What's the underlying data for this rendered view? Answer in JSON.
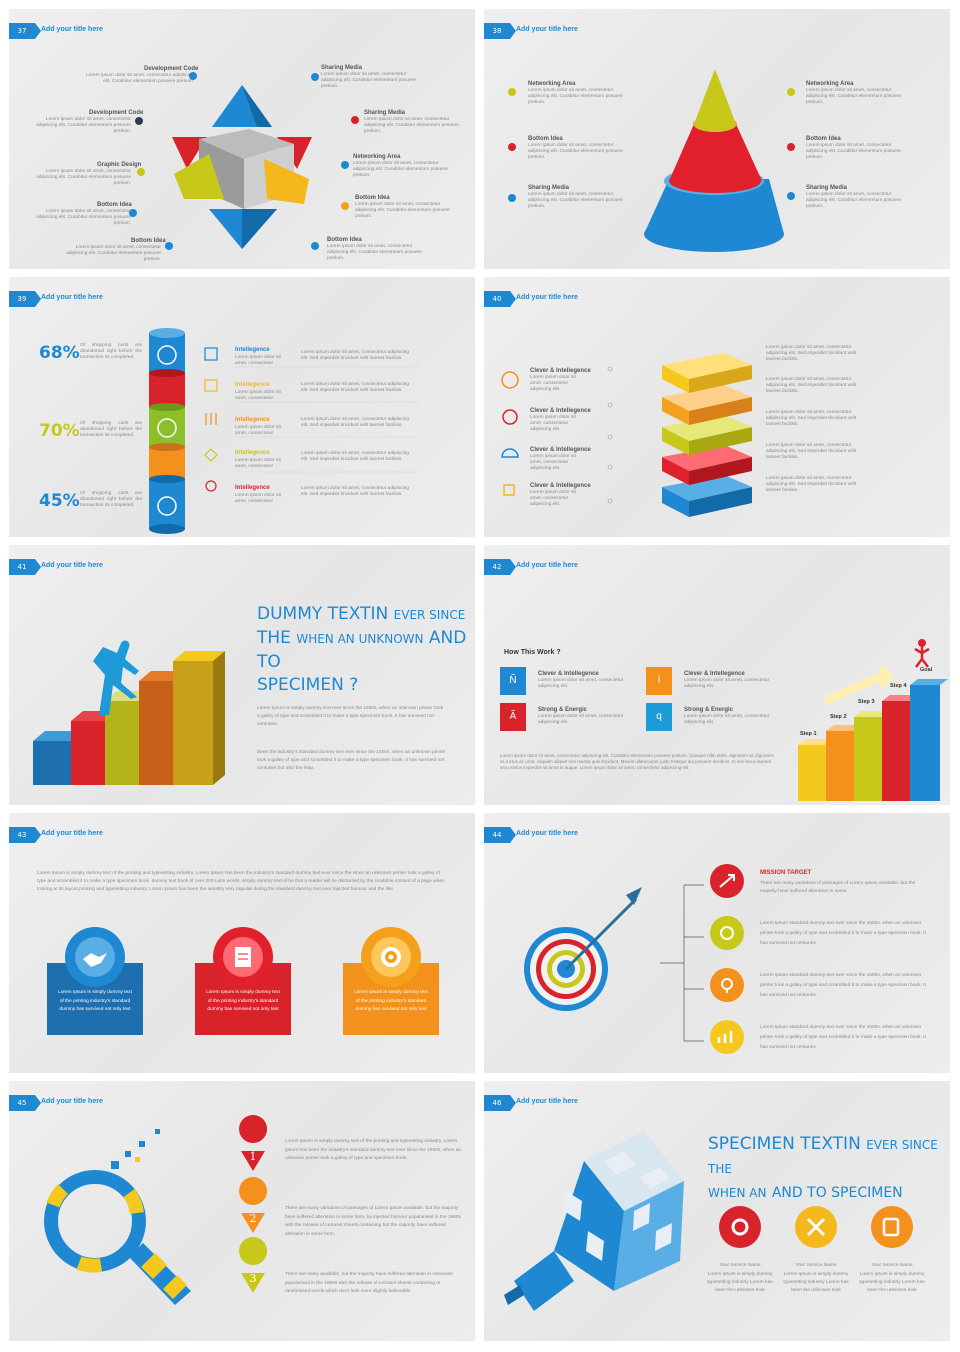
{
  "common": {
    "slide_title": "Add your title here"
  },
  "s37": {
    "num": "37",
    "left": [
      {
        "label": "Development Code",
        "text": "Lorem ipsum dolor sit amet, consectetur adipiscing elit. Curabitur elementum posuere pretium."
      },
      {
        "label": "Development Code",
        "text": "Lorem ipsum dolor sit amet, consectetur adipiscing elit. Curabitur elementum posuere pretium."
      },
      {
        "label": "Graphic Design",
        "text": "Lorem ipsum dolor sit amet, consectetur adipiscing elit. Curabitur elementum posuere pretium."
      },
      {
        "label": "Bottom Idea",
        "text": "Lorem ipsum dolor sit amet, consectetur adipiscing elit. Curabitur elementum posuere pretium."
      },
      {
        "label": "Bottom Idea",
        "text": "Lorem ipsum dolor sit amet, consectetur adipiscing elit. Curabitur elementum posuere pretium."
      }
    ],
    "right": [
      {
        "label": "Sharing Media",
        "text": "Lorem ipsum dolor sit amet, consectetur adipiscing elit. Curabitur elementum posuere pretium."
      },
      {
        "label": "Sharing Media",
        "text": "Lorem ipsum dolor sit amet, consectetur adipiscing elit. Curabitur elementum posuere pretium."
      },
      {
        "label": "Networking Area",
        "text": "Lorem ipsum dolor sit amet, consectetur adipiscing elit. Curabitur elementum posuere pretium."
      },
      {
        "label": "Bottom Idea",
        "text": "Lorem ipsum dolor sit amet, consectetur adipiscing elit. Curabitur elementum posuere pretium."
      },
      {
        "label": "Bottom Idea",
        "text": "Lorem ipsum dolor sit amet, consectetur adipiscing elit. Curabitur elementum posuere pretium."
      }
    ]
  },
  "s38": {
    "num": "38",
    "left": [
      {
        "label": "Networking Area",
        "text": "Lorem ipsum dolor sit amet, consectetur adipiscing elit. Curabitur elementum posuere pretium."
      },
      {
        "label": "Bottom Idea",
        "text": "Lorem ipsum dolor sit amet, consectetur adipiscing elit. Curabitur elementum posuere pretium."
      },
      {
        "label": "Sharing Media",
        "text": "Lorem ipsum dolor sit amet, consectetur adipiscing elit. Curabitur elementum posuere pretium."
      }
    ],
    "right": [
      {
        "label": "Networking Area",
        "text": "Lorem ipsum dolor sit amet, consectetur adipiscing elit. Curabitur elementum posuere pretium."
      },
      {
        "label": "Bottom Idea",
        "text": "Lorem ipsum dolor sit amet, consectetur adipiscing elit. Curabitur elementum posuere pretium."
      },
      {
        "label": "Sharing Media",
        "text": "Lorem ipsum dolor sit amet, consectetur adipiscing elit. Curabitur elementum posuere pretium."
      }
    ]
  },
  "s39": {
    "num": "39",
    "stats": [
      {
        "pct": "68%",
        "text": "Of shopping carts are abandoned right before the transaction its completed."
      },
      {
        "pct": "70%",
        "text": "Of shopping carts are abandoned right before the transaction its completed."
      },
      {
        "pct": "45%",
        "text": "Of shopping carts are abandoned right before the transaction its completed."
      }
    ],
    "items": [
      {
        "label": "Intellegence",
        "sub": "Lorem ipsum dolor sit amet, consectetur",
        "text": "Lorem ipsum dolor sit amet, consectetur adipiscing elit. Sed imperdiet tincidunt velit laoreet facilisis."
      },
      {
        "label": "Intellegence",
        "sub": "Lorem ipsum dolor sit amet, consectetur",
        "text": "Lorem ipsum dolor sit amet, consectetur adipiscing elit. Sed imperdiet tincidunt velit laoreet facilisis."
      },
      {
        "label": "Intellegence",
        "sub": "Lorem ipsum dolor sit amet, consectetur",
        "text": "Lorem ipsum dolor sit amet, consectetur adipiscing elit. Sed imperdiet tincidunt velit laoreet facilisis."
      },
      {
        "label": "Intellegence",
        "sub": "Lorem ipsum dolor sit amet, consectetur",
        "text": "Lorem ipsum dolor sit amet, consectetur adipiscing elit. Sed imperdiet tincidunt velit laoreet facilisis."
      },
      {
        "label": "Intellegence",
        "sub": "Lorem ipsum dolor sit amet, consectetur",
        "text": "Lorem ipsum dolor sit amet, consectetur adipiscing elit. Sed imperdiet tincidunt velit laoreet facilisis."
      }
    ]
  },
  "s40": {
    "num": "40",
    "left": [
      {
        "label": "Clever & Intellegence",
        "text": "Lorem ipsum dolor sit amet, consectetur adipiscing elit."
      },
      {
        "label": "Clever & Intellegence",
        "text": "Lorem ipsum dolor sit amet, consectetur adipiscing elit."
      },
      {
        "label": "Clever & Intellegence",
        "text": "Lorem ipsum dolor sit amet, consectetur adipiscing elit."
      },
      {
        "label": "Clever & Intellegence",
        "text": "Lorem ipsum dolor sit amet, consectetur adipiscing elit."
      }
    ],
    "right": [
      "Lorem ipsum dolor sit amet, consectetur adipiscing elit. Sed imperdiet tincidunt velit laoreet facilisis.",
      "Lorem ipsum dolor sit amet, consectetur adipiscing elit. Sed imperdiet tincidunt velit laoreet facilisis.",
      "Lorem ipsum dolor sit amet, consectetur adipiscing elit. Sed imperdiet tincidunt velit laoreet facilisis.",
      "Lorem ipsum dolor sit amet, consectetur adipiscing elit. Sed imperdiet tincidunt velit laoreet facilisis.",
      "Lorem ipsum dolor sit amet, consectetur adipiscing elit. Sed imperdiet tincidunt velit laoreet facilisis."
    ]
  },
  "s41": {
    "num": "41",
    "h1a": "DUMMY TEXTIN",
    "h1b": "EVER SINCE",
    "h2a": "THE",
    "h2b": "WHEN AN UNKNOWN",
    "h2c": "AND TO",
    "h3": "SPECIMEN ?",
    "p1": "Lorem Ipsum is simply dummy text ever since the 1500s, when an unknown printer took a galley of type and scrambled it to make a type specimen book. It has survived not centuries.",
    "p2": "Been the industry's standard dummy text ever since the 1500s, when an unknown printer took a galley of type and scrambled it to make a type specimen book. It has survived not centuries but also the leap."
  },
  "s42": {
    "num": "42",
    "heading": "How This Work ?",
    "items": [
      {
        "glyph": "Ñ",
        "label": "Clever & Intellegence",
        "text": "Lorem ipsum dolor sit amet, consectetur adipiscing elit."
      },
      {
        "glyph": "l",
        "label": "Clever & Intellegence",
        "text": "Lorem ipsum dolor sit amet, consectetur adipiscing elit."
      },
      {
        "glyph": "Ã",
        "label": "Strong & Energic",
        "text": "Lorem ipsum dolor sit amet, consectetur adipiscing elit."
      },
      {
        "glyph": "q",
        "label": "Strong & Energic",
        "text": "Lorem ipsum dolor sit amet, consectetur adipiscing elit."
      }
    ],
    "para": "Lorem ipsum dolor sit amet, consectetur adipiscing elit. Curabitur elementum posuere pretium. Quisque nibh dolor, dignissim ac dignissim ut, luctus ac urna. Aliquam aliquet non massa quis tincidunt. Mauris ullamcorper justo tristique dui posuere tincidunt. In nec lacus laoreet arcu varius imperdiet sit amet in augue. Lorem ipsum dolor sit amet, consectetur adipiscing elit.",
    "steps": [
      "Step 1",
      "Step 2",
      "Step 3",
      "Step 4",
      "Goal"
    ]
  },
  "s43": {
    "num": "43",
    "intro": "Lorem Ipsum is simply dummy text of the printing and typesetting industry. Lorem Ipsum has been the industry's standard dummy text ever since the when an unknown printer took a galley of type and scrambled it to make a type specimen book. dummy text book of over 200 Latin words, simply dummy text of he that a reader will be distracted by the readable content of a page when looking at its layout printing and typesetting industry. Lorem Ipsum has been the industry very popular during the standard dummy text ever injected humour and the like.",
    "cards": [
      "Lorem Ipsum is simply dummy text of the printing industry's standard dummy has survived not only text",
      "Lorem Ipsum is simply dummy text of the printing industry's standard dummy has survived not only text",
      "Lorem Ipsum is simply dummy text of the printing industry's standard dummy has survived not only text"
    ]
  },
  "s44": {
    "num": "44",
    "heading": "MISSION TARGET",
    "first": "There are many variations of passages of Lorem Ipsum available, but the majority have suffered alteration in some.",
    "items": [
      "Lorem Ipsum standard dummy text ever since the 1500s, when an unknown printer took a galley of type and scrambled it to make a type specimen book. It has survived not centuries.",
      "Lorem Ipsum standard dummy text ever since the 1500s, when an unknown printer took a galley of type and scrambled it to make a type specimen book. It has survived not centuries.",
      "Lorem Ipsum standard dummy text ever since the 1500s, when an unknown printer took a galley of type and scrambled it to make a type specimen book. It has survived not centuries."
    ]
  },
  "s45": {
    "num": "45",
    "items": [
      {
        "n": "1",
        "text": "Lorem Ipsum is simply dummy text of the printing and typesetting industry. Lorem Ipsum has been the industry's standard dummy text ever since the 1500s, when an unknown printer took a galley of type and specimen book."
      },
      {
        "n": "2",
        "text": "There are many variations of passages of Lorem Ipsum available, but the majority have suffered alteration in some form, by injected humour popularised in the 1960s with the release of Letraset sheets containing but the majority have suffered alteration in some form."
      },
      {
        "n": "3",
        "text": "There are many available, but the majority have suffered alteration in somewas popularised in the 1960s with the release of Letraset sheets containing or randomised words which don't look even slightly believable."
      }
    ]
  },
  "s46": {
    "num": "46",
    "h1a": "SPECIMEN TEXTIN",
    "h1b": "EVER SINCE THE",
    "h2a": "WHEN AN",
    "h2b": "AND TO SPECIMEN",
    "services": [
      {
        "name": "Your Service Name",
        "text": "Lorem Ipsum is simply dummy typesetting industry Lorem has been the unknown took"
      },
      {
        "name": "Your Service Name",
        "text": "Lorem Ipsum is simply dummy typesetting industry Lorem has been the unknown took"
      },
      {
        "name": "Your Service Name",
        "text": "Lorem Ipsum is simply dummy typesetting industry Lorem has been the unknown took"
      }
    ]
  }
}
